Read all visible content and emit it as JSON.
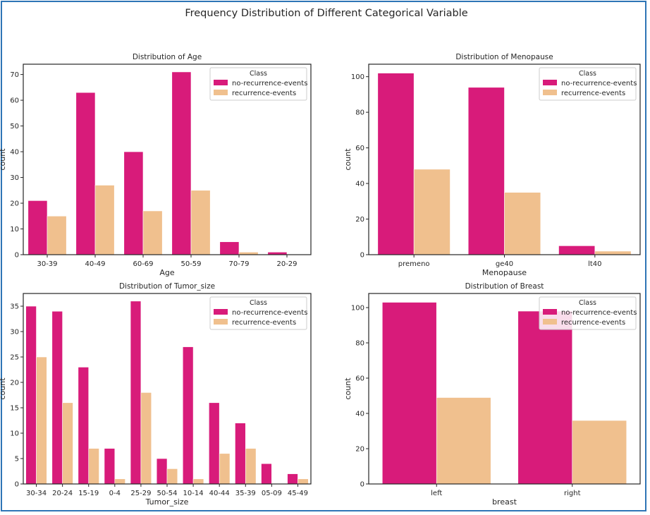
{
  "figure": {
    "title": "Frequency Distribution of Different Categorical Variable"
  },
  "colors": {
    "no_recurrence": "#d81b7a",
    "recurrence": "#f0c08e",
    "frame": "#2e75b6",
    "axis": "#262626"
  },
  "chart_data": [
    {
      "type": "bar",
      "title": "Distribution of Age",
      "xlabel": "Age",
      "ylabel": "count",
      "categories": [
        "30-39",
        "40-49",
        "60-69",
        "50-59",
        "70-79",
        "20-29"
      ],
      "series": [
        {
          "name": "no-recurrence-events",
          "values": [
            21,
            63,
            40,
            71,
            5,
            1
          ]
        },
        {
          "name": "recurrence-events",
          "values": [
            15,
            27,
            17,
            25,
            1,
            0
          ]
        }
      ],
      "ylim": [
        0,
        74
      ],
      "yticks": [
        0,
        10,
        20,
        30,
        40,
        50,
        60,
        70
      ],
      "legend": {
        "title": "Class",
        "position": "top-right"
      }
    },
    {
      "type": "bar",
      "title": "Distribution of Menopause",
      "xlabel": "Menopause",
      "ylabel": "count",
      "categories": [
        "premeno",
        "ge40",
        "lt40"
      ],
      "series": [
        {
          "name": "no-recurrence-events",
          "values": [
            102,
            94,
            5
          ]
        },
        {
          "name": "recurrence-events",
          "values": [
            48,
            35,
            2
          ]
        }
      ],
      "ylim": [
        0,
        107
      ],
      "yticks": [
        0,
        20,
        40,
        60,
        80,
        100
      ],
      "legend": {
        "title": "Class",
        "position": "top-right"
      }
    },
    {
      "type": "bar",
      "title": "Distribution of Tumor_size",
      "xlabel": "Tumor_size",
      "ylabel": "count",
      "categories": [
        "30-34",
        "20-24",
        "15-19",
        "0-4",
        "25-29",
        "50-54",
        "10-14",
        "40-44",
        "35-39",
        "05-09",
        "45-49"
      ],
      "series": [
        {
          "name": "no-recurrence-events",
          "values": [
            35,
            34,
            23,
            7,
            36,
            5,
            27,
            16,
            12,
            4,
            2
          ]
        },
        {
          "name": "recurrence-events",
          "values": [
            25,
            16,
            7,
            1,
            18,
            3,
            1,
            6,
            7,
            0,
            1
          ]
        }
      ],
      "ylim": [
        0,
        37.5
      ],
      "yticks": [
        0,
        5,
        10,
        15,
        20,
        25,
        30,
        35
      ],
      "legend": {
        "title": "Class",
        "position": "top-right"
      }
    },
    {
      "type": "bar",
      "title": "Distribution of Breast",
      "xlabel": "breast",
      "ylabel": "count",
      "categories": [
        "left",
        "right"
      ],
      "series": [
        {
          "name": "no-recurrence-events",
          "values": [
            103,
            98
          ]
        },
        {
          "name": "recurrence-events",
          "values": [
            49,
            36
          ]
        }
      ],
      "ylim": [
        0,
        108
      ],
      "yticks": [
        0,
        20,
        40,
        60,
        80,
        100
      ],
      "legend": {
        "title": "Class",
        "position": "top-right"
      }
    }
  ]
}
